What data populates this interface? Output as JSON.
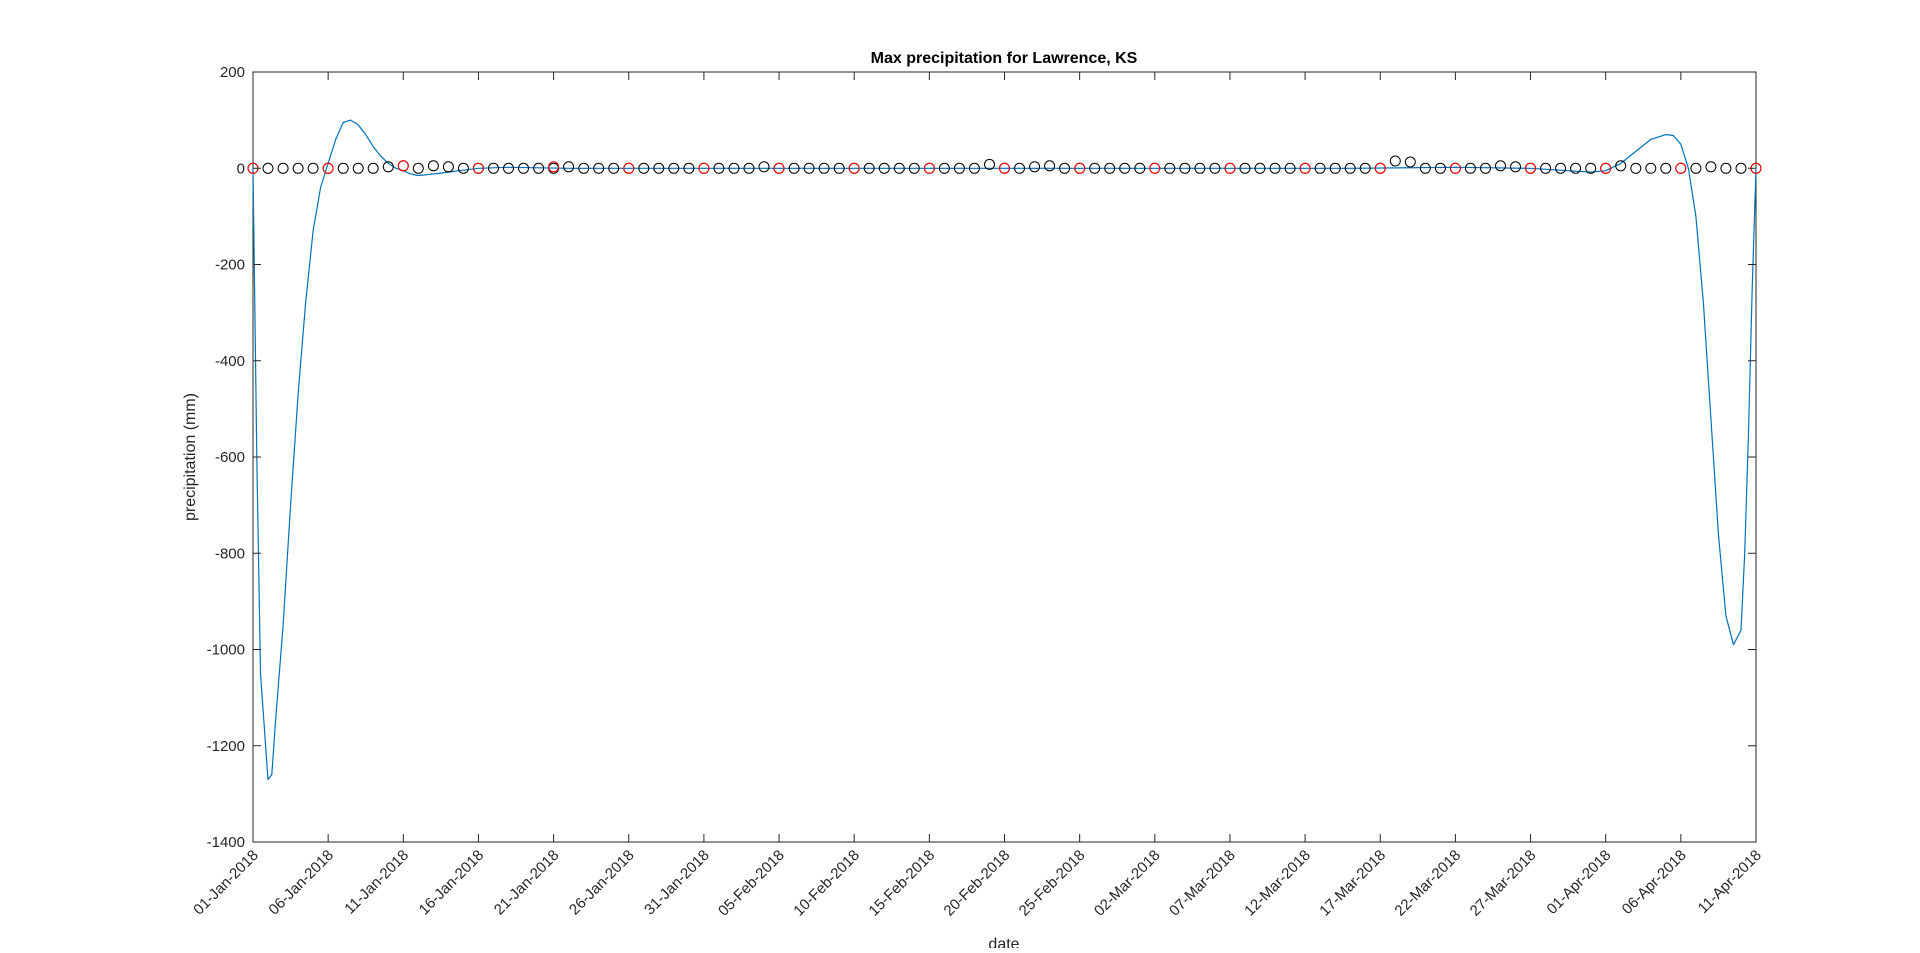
{
  "chart_data": {
    "type": "scatter",
    "title": "Max precipitation for Lawrence, KS",
    "xlabel": "date",
    "ylabel": "precipitation (mm)",
    "ylim": [
      -1400,
      200
    ],
    "yticks": [
      200,
      0,
      -200,
      -400,
      -600,
      -800,
      -1000,
      -1200,
      -1400
    ],
    "xlim": [
      "2018-01-01",
      "2018-04-11"
    ],
    "xtick_labels": [
      "01-Jan-2018",
      "06-Jan-2018",
      "11-Jan-2018",
      "16-Jan-2018",
      "21-Jan-2018",
      "26-Jan-2018",
      "31-Jan-2018",
      "05-Feb-2018",
      "10-Feb-2018",
      "15-Feb-2018",
      "20-Feb-2018",
      "25-Feb-2018",
      "02-Mar-2018",
      "07-Mar-2018",
      "12-Mar-2018",
      "17-Mar-2018",
      "22-Mar-2018",
      "27-Mar-2018",
      "01-Apr-2018",
      "06-Apr-2018",
      "11-Apr-2018"
    ],
    "grid": false,
    "legend": "none",
    "series": [
      {
        "kind": "markers",
        "marker": "circle-open",
        "color": "#000000",
        "dates": [
          "2018-01-01",
          "2018-01-02",
          "2018-01-03",
          "2018-01-04",
          "2018-01-05",
          "2018-01-06",
          "2018-01-07",
          "2018-01-08",
          "2018-01-09",
          "2018-01-10",
          "2018-01-11",
          "2018-01-12",
          "2018-01-13",
          "2018-01-14",
          "2018-01-15",
          "2018-01-16",
          "2018-01-17",
          "2018-01-18",
          "2018-01-19",
          "2018-01-20",
          "2018-01-21",
          "2018-01-22",
          "2018-01-23",
          "2018-01-24",
          "2018-01-25",
          "2018-01-26",
          "2018-01-27",
          "2018-01-28",
          "2018-01-29",
          "2018-01-30",
          "2018-01-31",
          "2018-02-01",
          "2018-02-02",
          "2018-02-03",
          "2018-02-04",
          "2018-02-05",
          "2018-02-06",
          "2018-02-07",
          "2018-02-08",
          "2018-02-09",
          "2018-02-10",
          "2018-02-11",
          "2018-02-12",
          "2018-02-13",
          "2018-02-14",
          "2018-02-15",
          "2018-02-16",
          "2018-02-17",
          "2018-02-18",
          "2018-02-19",
          "2018-02-20",
          "2018-02-21",
          "2018-02-22",
          "2018-02-23",
          "2018-02-24",
          "2018-02-25",
          "2018-02-26",
          "2018-02-27",
          "2018-02-28",
          "2018-03-01",
          "2018-03-02",
          "2018-03-03",
          "2018-03-04",
          "2018-03-05",
          "2018-03-06",
          "2018-03-07",
          "2018-03-08",
          "2018-03-09",
          "2018-03-10",
          "2018-03-11",
          "2018-03-12",
          "2018-03-13",
          "2018-03-14",
          "2018-03-15",
          "2018-03-16",
          "2018-03-17",
          "2018-03-18",
          "2018-03-19",
          "2018-03-20",
          "2018-03-21",
          "2018-03-22",
          "2018-03-23",
          "2018-03-24",
          "2018-03-25",
          "2018-03-26",
          "2018-03-27",
          "2018-03-28",
          "2018-03-29",
          "2018-03-30",
          "2018-03-31",
          "2018-04-01",
          "2018-04-02",
          "2018-04-03",
          "2018-04-04",
          "2018-04-05",
          "2018-04-06",
          "2018-04-07",
          "2018-04-08",
          "2018-04-09",
          "2018-04-10",
          "2018-04-11"
        ],
        "values": [
          0,
          0,
          0,
          0,
          0,
          0,
          0,
          0,
          0,
          3,
          5,
          0,
          5,
          3,
          0,
          0,
          0,
          0,
          0,
          0,
          0,
          3,
          0,
          0,
          0,
          0,
          0,
          0,
          0,
          0,
          0,
          0,
          0,
          0,
          3,
          0,
          0,
          0,
          0,
          0,
          0,
          0,
          0,
          0,
          0,
          0,
          0,
          0,
          0,
          8,
          0,
          0,
          3,
          5,
          0,
          0,
          0,
          0,
          0,
          0,
          0,
          0,
          0,
          0,
          0,
          0,
          0,
          0,
          0,
          0,
          0,
          0,
          0,
          0,
          0,
          0,
          15,
          13,
          0,
          0,
          0,
          0,
          0,
          5,
          3,
          0,
          0,
          0,
          0,
          0,
          0,
          5,
          0,
          0,
          0,
          0,
          0,
          3,
          0,
          0,
          0
        ]
      },
      {
        "kind": "markers",
        "marker": "circle-open",
        "color": "#ff0000",
        "dates": [
          "2018-01-01",
          "2018-01-06",
          "2018-01-11",
          "2018-01-16",
          "2018-01-21",
          "2018-01-26",
          "2018-01-31",
          "2018-02-05",
          "2018-02-10",
          "2018-02-15",
          "2018-02-20",
          "2018-02-25",
          "2018-03-02",
          "2018-03-07",
          "2018-03-12",
          "2018-03-17",
          "2018-03-22",
          "2018-03-27",
          "2018-04-01",
          "2018-04-06",
          "2018-04-11"
        ],
        "values": [
          0,
          0,
          5,
          0,
          3,
          0,
          0,
          0,
          0,
          0,
          0,
          0,
          0,
          0,
          0,
          0,
          0,
          0,
          0,
          0,
          0
        ]
      },
      {
        "kind": "line",
        "color": "#0072bd",
        "dates": [
          "2018-01-01",
          "2018-01-01T06:00",
          "2018-01-01T12:00",
          "2018-01-02",
          "2018-01-02T06:00",
          "2018-01-02T12:00",
          "2018-01-03",
          "2018-01-03T12:00",
          "2018-01-04",
          "2018-01-04T12:00",
          "2018-01-05",
          "2018-01-05T12:00",
          "2018-01-06",
          "2018-01-06T12:00",
          "2018-01-07",
          "2018-01-07T12:00",
          "2018-01-08",
          "2018-01-08T12:00",
          "2018-01-09",
          "2018-01-09T12:00",
          "2018-01-10",
          "2018-01-10T12:00",
          "2018-01-11",
          "2018-01-11T12:00",
          "2018-01-12",
          "2018-01-13",
          "2018-01-14",
          "2018-01-15",
          "2018-01-16",
          "2018-01-18",
          "2018-01-22",
          "2018-02-01",
          "2018-02-15",
          "2018-03-01",
          "2018-03-15",
          "2018-03-22",
          "2018-03-27",
          "2018-03-31",
          "2018-04-01",
          "2018-04-02",
          "2018-04-03",
          "2018-04-04",
          "2018-04-05",
          "2018-04-05T12:00",
          "2018-04-06",
          "2018-04-06T12:00",
          "2018-04-07",
          "2018-04-07T12:00",
          "2018-04-08",
          "2018-04-08T12:00",
          "2018-04-09",
          "2018-04-09T12:00",
          "2018-04-10",
          "2018-04-10T06:00",
          "2018-04-10T12:00",
          "2018-04-10T18:00",
          "2018-04-11"
        ],
        "values": [
          0,
          -600,
          -1050,
          -1270,
          -1260,
          -1150,
          -950,
          -700,
          -470,
          -280,
          -130,
          -40,
          10,
          60,
          95,
          100,
          90,
          70,
          45,
          25,
          10,
          0,
          -5,
          -12,
          -15,
          -12,
          -8,
          -4,
          0,
          2,
          0,
          0,
          0,
          0,
          0,
          2,
          0,
          -8,
          -5,
          10,
          35,
          60,
          70,
          68,
          50,
          0,
          -100,
          -280,
          -520,
          -760,
          -930,
          -990,
          -960,
          -800,
          -550,
          -250,
          0
        ]
      }
    ]
  }
}
